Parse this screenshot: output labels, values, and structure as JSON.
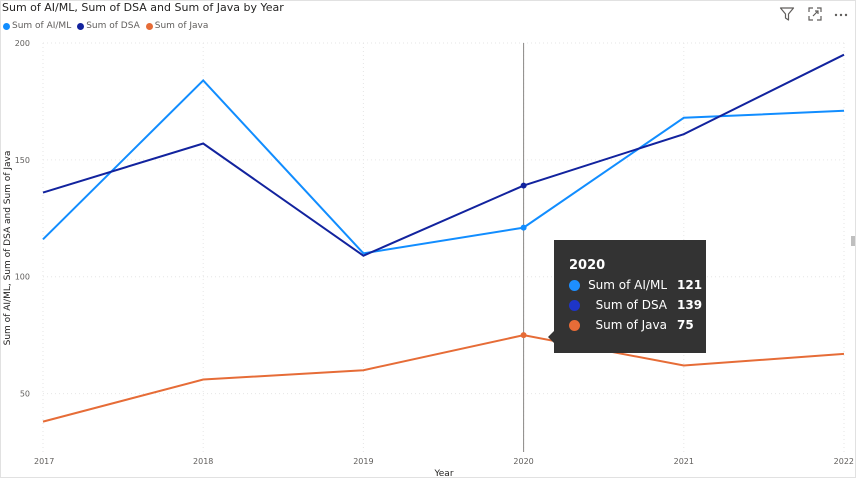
{
  "title": "Sum of AI/ML, Sum of DSA and Sum of Java by Year",
  "toolbar": {
    "icons": [
      "filter-icon",
      "focus-mode-icon",
      "more-options-icon"
    ]
  },
  "chart_data": {
    "type": "line",
    "title": "Sum of AI/ML, Sum of DSA and Sum of Java by Year",
    "xlabel": "Year",
    "ylabel": "Sum of AI/ML, Sum of DSA and Sum of Java",
    "categories": [
      "2017",
      "2018",
      "2019",
      "2020",
      "2021",
      "2022"
    ],
    "yticks": [
      50,
      100,
      150,
      200
    ],
    "ylim": [
      25,
      200
    ],
    "grid": true,
    "legend_position": "top-left",
    "series": [
      {
        "name": "Sum of AI/ML",
        "color": "#118DFF",
        "values": [
          116,
          184,
          110,
          121,
          168,
          171
        ]
      },
      {
        "name": "Sum of DSA",
        "color": "#12239E",
        "values": [
          136,
          157,
          109,
          139,
          161,
          195
        ]
      },
      {
        "name": "Sum of Java",
        "color": "#E66C37",
        "values": [
          38,
          56,
          60,
          75,
          62,
          67
        ]
      }
    ],
    "highlight": {
      "category": "2020",
      "tooltip": {
        "header": "2020",
        "rows": [
          {
            "label": "Sum of AI/ML",
            "value": "121",
            "color": "#118DFF"
          },
          {
            "label": "Sum of DSA",
            "value": "139",
            "color": "#12239E"
          },
          {
            "label": "Sum of Java",
            "value": "75",
            "color": "#E66C37"
          }
        ]
      }
    }
  }
}
